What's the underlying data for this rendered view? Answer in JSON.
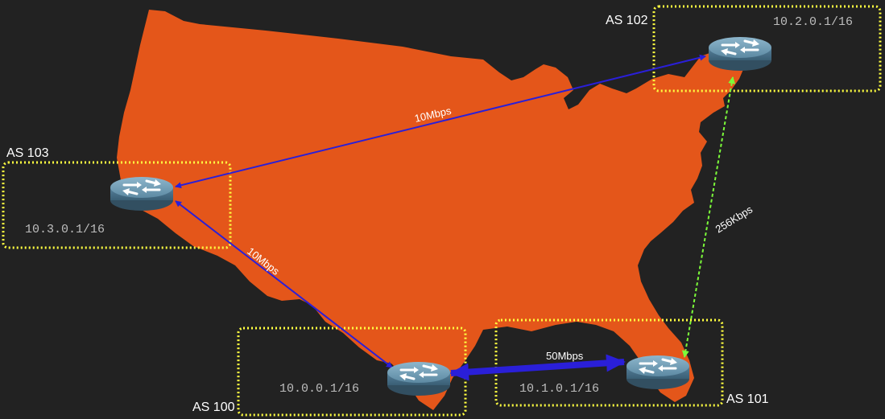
{
  "colors": {
    "background": "#222222",
    "map": "#e4561a",
    "as_box": "#ffff40",
    "link_primary": "#2a1fd8",
    "link_backup": "#7cfc3a",
    "router_body": "#5f8fa8"
  },
  "autonomous_systems": [
    {
      "id": "as100",
      "name": "AS 100",
      "subnet": "10.0.0.1/16"
    },
    {
      "id": "as101",
      "name": "AS 101",
      "subnet": "10.1.0.1/16"
    },
    {
      "id": "as102",
      "name": "AS 102",
      "subnet": "10.2.0.1/16"
    },
    {
      "id": "as103",
      "name": "AS 103",
      "subnet": "10.3.0.1/16"
    }
  ],
  "links": [
    {
      "id": "link-103-102",
      "from": "AS 103",
      "to": "AS 102",
      "bandwidth": "10Mbps",
      "style": "thin-blue"
    },
    {
      "id": "link-103-100",
      "from": "AS 103",
      "to": "AS 100",
      "bandwidth": "10Mbps",
      "style": "thin-blue"
    },
    {
      "id": "link-100-101",
      "from": "AS 100",
      "to": "AS 101",
      "bandwidth": "50Mbps",
      "style": "thick-blue"
    },
    {
      "id": "link-102-101",
      "from": "AS 102",
      "to": "AS 101",
      "bandwidth": "256Kbps",
      "style": "dashed-green"
    }
  ]
}
